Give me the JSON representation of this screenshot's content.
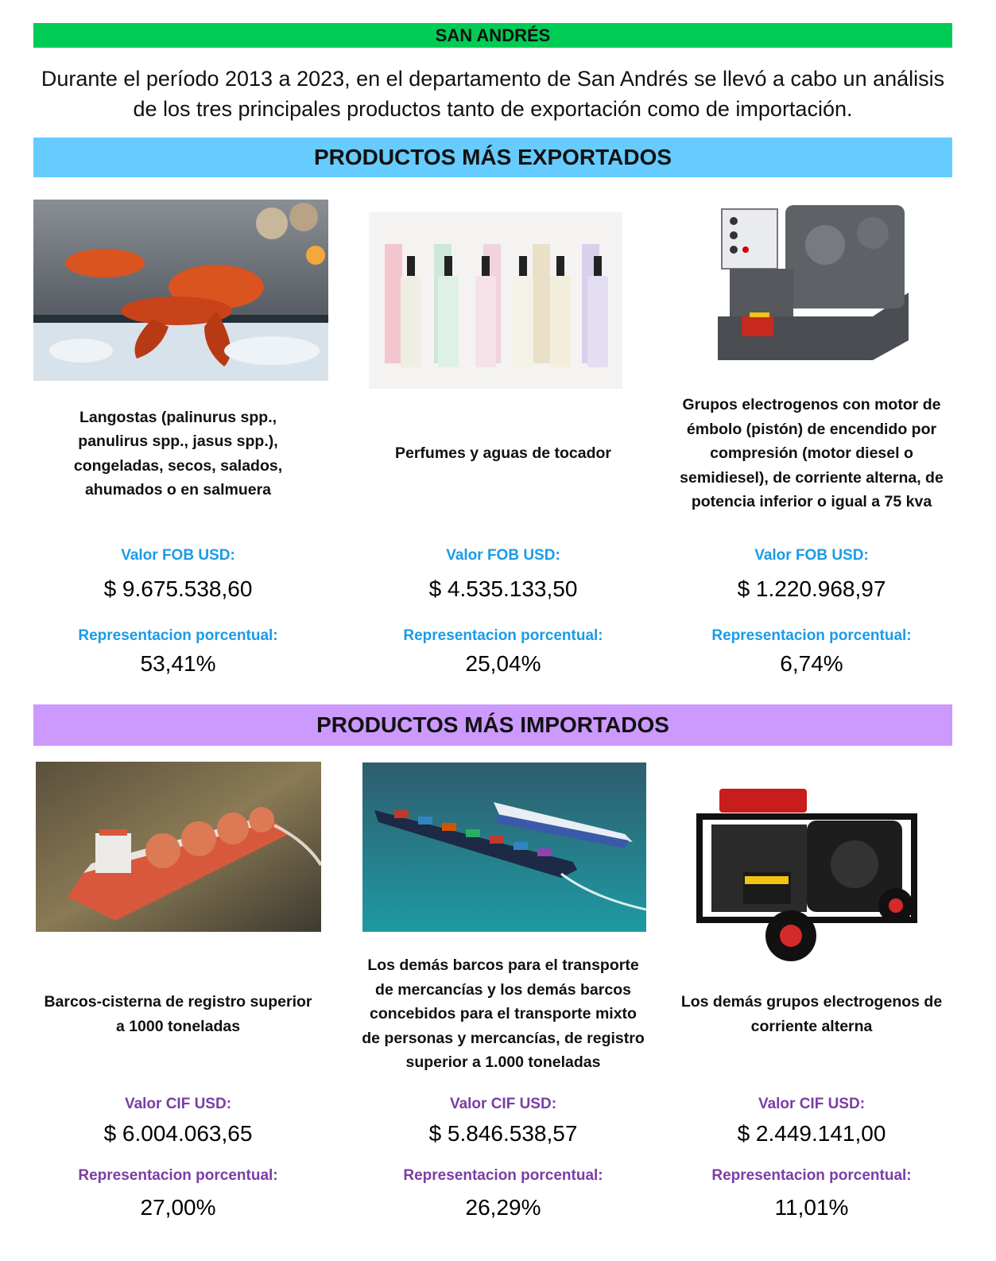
{
  "header": {
    "title": "SAN ANDRÉS",
    "intro": "Durante el período 2013 a 2023, en el departamento de San Andrés se llevó a cabo un análisis de los tres principales productos tanto de exportación como de importación."
  },
  "exports": {
    "heading": "PRODUCTOS MÁS EXPORTADOS",
    "value_label": "Valor FOB USD:",
    "pct_label": "Representacion porcentual:",
    "items": [
      {
        "name": "Langostas (palinurus spp., panulirus spp., jasus spp.), congeladas, secos, salados, ahumados o en salmuera",
        "value": "$ 9.675.538,60",
        "percent": "53,41%",
        "image": "lobster-photo"
      },
      {
        "name": "Perfumes y aguas de tocador",
        "value": "$ 4.535.133,50",
        "percent": "25,04%",
        "image": "perfume-bottles-photo"
      },
      {
        "name": "Grupos electrogenos con motor de émbolo (pistón) de encendido por compresión (motor diesel o semidiesel), de corriente alterna, de potencia inferior o igual a 75 kva",
        "value": "$ 1.220.968,97",
        "percent": "6,74%",
        "image": "diesel-generator-photo"
      }
    ]
  },
  "imports": {
    "heading": "PRODUCTOS MÁS IMPORTADOS",
    "value_label": "Valor CIF USD:",
    "pct_label": "Representacion porcentual:",
    "items": [
      {
        "name": "Barcos-cisterna de registro superior a 1000 toneladas",
        "value": "$ 6.004.063,65",
        "percent": "27,00%",
        "image": "tanker-ship-photo"
      },
      {
        "name": "Los demás barcos para el transporte de mercancías y los demás barcos concebidos para el transporte mixto de personas y mercancías, de registro superior a 1.000 toneladas",
        "value": "$ 5.846.538,57",
        "percent": "26,29%",
        "image": "cargo-ships-photo"
      },
      {
        "name": "Los demás grupos electrogenos de corriente alterna",
        "value": "$ 2.449.141,00",
        "percent": "11,01%",
        "image": "portable-generator-photo"
      }
    ]
  },
  "colors": {
    "title_band": "#00cc55",
    "export_band": "#66ccff",
    "import_band": "#cc99ff",
    "export_label": "#1a9be8",
    "import_label": "#7a3ea5"
  }
}
